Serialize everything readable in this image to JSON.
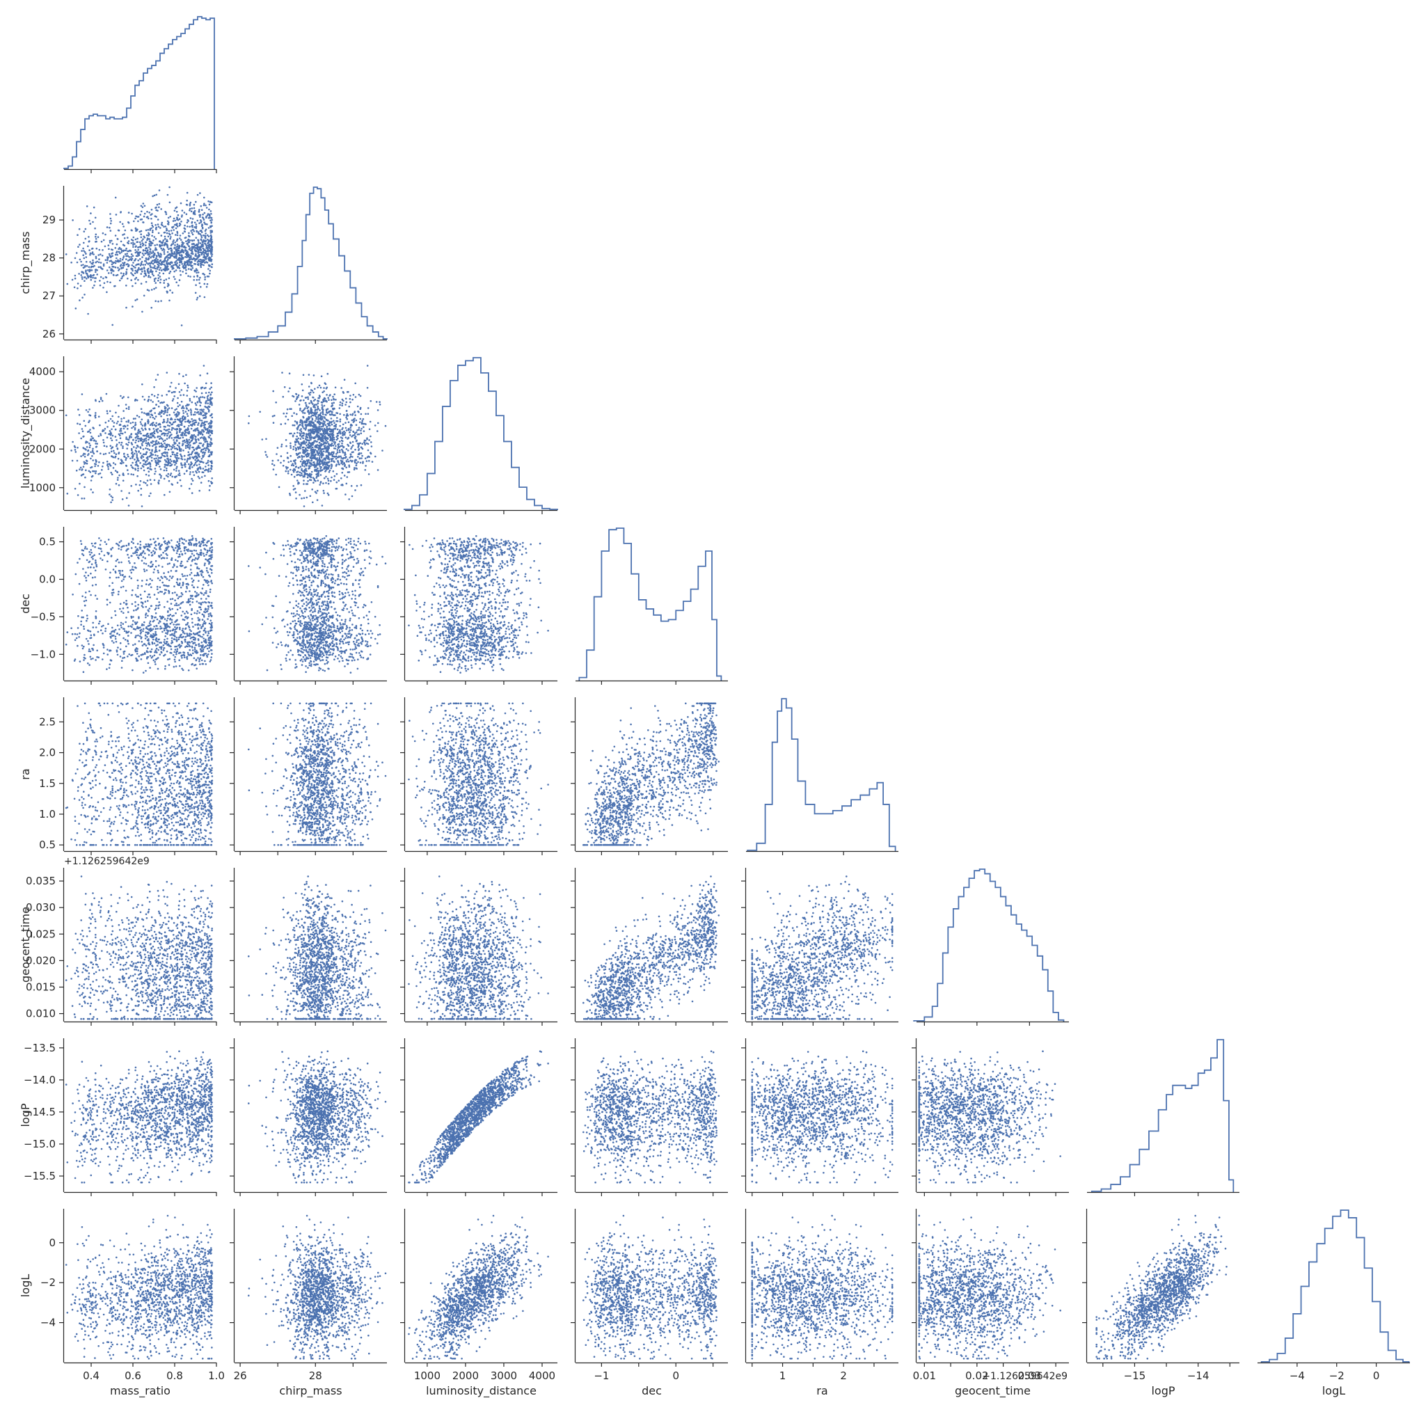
{
  "chart_data": {
    "type": "scatter",
    "title": "",
    "variables": [
      {
        "name": "mass_ratio",
        "range": [
          0.27,
          1.0
        ],
        "ticks": [
          0.4,
          0.6,
          0.8,
          1.0
        ],
        "tick_labels": [
          "0.4",
          "0.6",
          "0.8",
          "1.0"
        ]
      },
      {
        "name": "chirp_mass",
        "range": [
          25.85,
          29.9
        ],
        "ticks": [
          26,
          27,
          28,
          29
        ],
        "tick_labels": [
          "26",
          "27",
          "28",
          "29"
        ]
      },
      {
        "name": "luminosity_distance",
        "range": [
          420,
          4400
        ],
        "ticks": [
          1000,
          2000,
          3000,
          4000
        ],
        "tick_labels": [
          "1000",
          "2000",
          "3000",
          "4000"
        ]
      },
      {
        "name": "dec",
        "range": [
          -1.35,
          0.7
        ],
        "ticks": [
          -1.0,
          -0.5,
          0.0,
          0.5
        ],
        "tick_labels": [
          "−1.0",
          "−0.5",
          "0.0",
          "0.5"
        ]
      },
      {
        "name": "ra",
        "range": [
          0.4,
          2.9
        ],
        "ticks": [
          0.5,
          1.0,
          1.5,
          2.0,
          2.5
        ],
        "tick_labels": [
          "0.5",
          "1.0",
          "1.5",
          "2.0",
          "2.5"
        ]
      },
      {
        "name": "geocent_time",
        "range": [
          0.0085,
          0.0375
        ],
        "ticks": [
          0.01,
          0.015,
          0.02,
          0.025,
          0.03,
          0.035
        ],
        "tick_labels": [
          "0.010",
          "0.015",
          "0.020",
          "0.025",
          "0.030",
          "0.035"
        ],
        "offset": "+1.126259642⁤e9"
      },
      {
        "name": "logP",
        "range": [
          -15.75,
          -13.35
        ],
        "ticks": [
          -15.5,
          -15.0,
          -14.5,
          -14.0,
          -13.5
        ],
        "tick_labels": [
          "−15.5",
          "−15.0",
          "−14.5",
          "−14.0",
          "−13.5"
        ]
      },
      {
        "name": "logL",
        "range": [
          -6.0,
          1.7
        ],
        "ticks": [
          -4,
          -2,
          0
        ],
        "tick_labels": [
          "−4",
          "−2",
          "0"
        ]
      }
    ],
    "offset_text": "+1.126259642⁤e9",
    "diag_x_ticks": {
      "0": {
        "ticks": [
          0.4,
          0.6,
          0.8,
          1.0
        ],
        "labels": [
          "0.4",
          "0.6",
          "0.8",
          "1.0"
        ]
      },
      "1": {
        "ticks": [
          26,
          28
        ],
        "labels": [
          "26",
          "28"
        ]
      },
      "2": {
        "ticks": [
          1000,
          2000,
          3000,
          4000
        ],
        "labels": [
          "1000",
          "2000",
          "3000",
          "4000"
        ]
      },
      "3": {
        "ticks": [
          -1,
          0
        ],
        "labels": [
          "−1",
          "0"
        ]
      },
      "4": {
        "ticks": [
          1,
          2
        ],
        "labels": [
          "1",
          "2"
        ]
      },
      "5": {
        "ticks": [
          0.01,
          0.02,
          0.03
        ],
        "labels": [
          "0.01",
          "0.02",
          "0.03"
        ]
      },
      "6": {
        "ticks": [
          -15,
          -14
        ],
        "labels": [
          "−15",
          "−14"
        ]
      },
      "7": {
        "ticks": [
          -4,
          -2,
          0
        ],
        "labels": [
          "−4",
          "−2",
          "0"
        ]
      }
    },
    "histograms": {
      "mass_ratio": [
        [
          0.28,
          0.5
        ],
        [
          0.3,
          2
        ],
        [
          0.32,
          8
        ],
        [
          0.34,
          18
        ],
        [
          0.36,
          26
        ],
        [
          0.38,
          33
        ],
        [
          0.4,
          35
        ],
        [
          0.42,
          36
        ],
        [
          0.44,
          35
        ],
        [
          0.46,
          35
        ],
        [
          0.48,
          33
        ],
        [
          0.5,
          34
        ],
        [
          0.52,
          33
        ],
        [
          0.54,
          33
        ],
        [
          0.56,
          34
        ],
        [
          0.58,
          40
        ],
        [
          0.6,
          48
        ],
        [
          0.62,
          55
        ],
        [
          0.64,
          58
        ],
        [
          0.66,
          63
        ],
        [
          0.68,
          66
        ],
        [
          0.7,
          68
        ],
        [
          0.72,
          71
        ],
        [
          0.74,
          76
        ],
        [
          0.76,
          79
        ],
        [
          0.78,
          82
        ],
        [
          0.8,
          85
        ],
        [
          0.82,
          87
        ],
        [
          0.84,
          89
        ],
        [
          0.86,
          92
        ],
        [
          0.88,
          95
        ],
        [
          0.9,
          98
        ],
        [
          0.92,
          100
        ],
        [
          0.94,
          99
        ],
        [
          0.96,
          98
        ],
        [
          0.98,
          99
        ]
      ],
      "chirp_mass": [
        [
          26.0,
          0.5
        ],
        [
          26.3,
          1
        ],
        [
          26.6,
          2
        ],
        [
          26.9,
          5
        ],
        [
          27.1,
          9
        ],
        [
          27.3,
          18
        ],
        [
          27.45,
          30
        ],
        [
          27.6,
          48
        ],
        [
          27.7,
          65
        ],
        [
          27.8,
          82
        ],
        [
          27.9,
          96
        ],
        [
          28.0,
          100
        ],
        [
          28.1,
          99
        ],
        [
          28.2,
          93
        ],
        [
          28.3,
          85
        ],
        [
          28.4,
          76
        ],
        [
          28.55,
          66
        ],
        [
          28.7,
          55
        ],
        [
          28.85,
          45
        ],
        [
          29.0,
          34
        ],
        [
          29.15,
          24
        ],
        [
          29.3,
          15
        ],
        [
          29.45,
          9
        ],
        [
          29.6,
          5
        ],
        [
          29.75,
          2
        ],
        [
          29.85,
          0.5
        ]
      ],
      "luminosity_distance": [
        [
          500,
          0.5
        ],
        [
          700,
          3
        ],
        [
          900,
          10
        ],
        [
          1100,
          24
        ],
        [
          1300,
          45
        ],
        [
          1500,
          68
        ],
        [
          1700,
          85
        ],
        [
          1900,
          95
        ],
        [
          2100,
          98
        ],
        [
          2300,
          100
        ],
        [
          2500,
          90
        ],
        [
          2700,
          78
        ],
        [
          2900,
          62
        ],
        [
          3100,
          45
        ],
        [
          3300,
          28
        ],
        [
          3500,
          15
        ],
        [
          3700,
          7
        ],
        [
          3900,
          3
        ],
        [
          4100,
          1
        ],
        [
          4300,
          0.5
        ]
      ],
      "dec": [
        [
          -1.25,
          2
        ],
        [
          -1.15,
          20
        ],
        [
          -1.05,
          55
        ],
        [
          -0.95,
          85
        ],
        [
          -0.85,
          99
        ],
        [
          -0.75,
          100
        ],
        [
          -0.65,
          90
        ],
        [
          -0.55,
          70
        ],
        [
          -0.45,
          53
        ],
        [
          -0.35,
          47
        ],
        [
          -0.25,
          43
        ],
        [
          -0.15,
          39
        ],
        [
          -0.05,
          40
        ],
        [
          0.05,
          46
        ],
        [
          0.15,
          52
        ],
        [
          0.25,
          60
        ],
        [
          0.35,
          75
        ],
        [
          0.45,
          85
        ],
        [
          0.52,
          40
        ],
        [
          0.58,
          3
        ]
      ],
      "ra": [
        [
          0.5,
          0.5
        ],
        [
          0.65,
          5
        ],
        [
          0.78,
          30
        ],
        [
          0.88,
          70
        ],
        [
          0.95,
          90
        ],
        [
          1.02,
          98
        ],
        [
          1.1,
          92
        ],
        [
          1.2,
          72
        ],
        [
          1.3,
          45
        ],
        [
          1.45,
          30
        ],
        [
          1.6,
          24
        ],
        [
          1.75,
          24
        ],
        [
          1.9,
          26
        ],
        [
          2.05,
          29
        ],
        [
          2.2,
          33
        ],
        [
          2.35,
          36
        ],
        [
          2.5,
          40
        ],
        [
          2.6,
          44
        ],
        [
          2.7,
          30
        ],
        [
          2.8,
          3
        ]
      ],
      "geocent_time": [
        [
          0.009,
          0.5
        ],
        [
          0.011,
          3
        ],
        [
          0.012,
          10
        ],
        [
          0.013,
          25
        ],
        [
          0.014,
          45
        ],
        [
          0.015,
          62
        ],
        [
          0.016,
          74
        ],
        [
          0.017,
          82
        ],
        [
          0.018,
          88
        ],
        [
          0.019,
          94
        ],
        [
          0.02,
          99
        ],
        [
          0.021,
          100
        ],
        [
          0.022,
          97
        ],
        [
          0.023,
          92
        ],
        [
          0.024,
          88
        ],
        [
          0.025,
          82
        ],
        [
          0.026,
          76
        ],
        [
          0.027,
          70
        ],
        [
          0.028,
          64
        ],
        [
          0.029,
          60
        ],
        [
          0.03,
          56
        ],
        [
          0.031,
          50
        ],
        [
          0.032,
          43
        ],
        [
          0.033,
          34
        ],
        [
          0.034,
          20
        ],
        [
          0.035,
          6
        ],
        [
          0.036,
          1
        ]
      ],
      "logP": [
        [
          -15.6,
          0.5
        ],
        [
          -15.45,
          2
        ],
        [
          -15.3,
          5
        ],
        [
          -15.15,
          10
        ],
        [
          -15.0,
          18
        ],
        [
          -14.85,
          28
        ],
        [
          -14.7,
          40
        ],
        [
          -14.55,
          54
        ],
        [
          -14.45,
          64
        ],
        [
          -14.35,
          70
        ],
        [
          -14.25,
          70
        ],
        [
          -14.15,
          68
        ],
        [
          -14.05,
          70
        ],
        [
          -13.95,
          78
        ],
        [
          -13.85,
          80
        ],
        [
          -13.75,
          88
        ],
        [
          -13.65,
          100
        ],
        [
          -13.55,
          60
        ],
        [
          -13.48,
          8
        ]
      ],
      "logL": [
        [
          -5.6,
          0.5
        ],
        [
          -5.2,
          2
        ],
        [
          -4.8,
          6
        ],
        [
          -4.4,
          16
        ],
        [
          -4.0,
          32
        ],
        [
          -3.6,
          50
        ],
        [
          -3.2,
          66
        ],
        [
          -2.8,
          78
        ],
        [
          -2.4,
          88
        ],
        [
          -2.0,
          96
        ],
        [
          -1.6,
          100
        ],
        [
          -1.2,
          95
        ],
        [
          -0.8,
          82
        ],
        [
          -0.4,
          62
        ],
        [
          0.0,
          40
        ],
        [
          0.4,
          20
        ],
        [
          0.8,
          8
        ],
        [
          1.2,
          2
        ],
        [
          1.5,
          0.5
        ]
      ]
    },
    "series_color": "#4c72b0",
    "grid": false,
    "legend": "none"
  }
}
